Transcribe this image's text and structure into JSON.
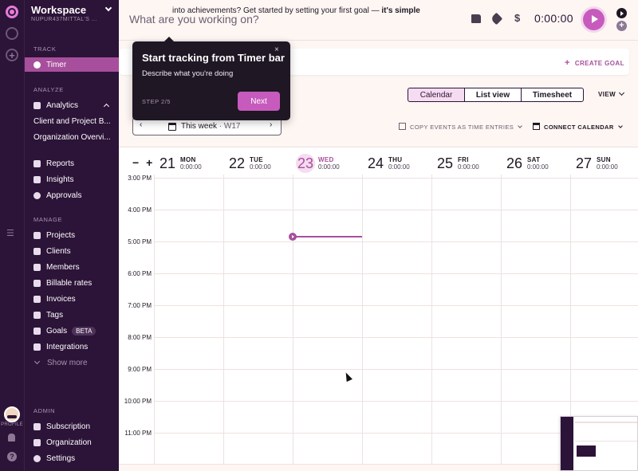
{
  "rail": {
    "profile_label": "PROFILE",
    "help": "?"
  },
  "sidebar": {
    "workspace_title": "Workspace",
    "workspace_sub": "NUPUR437MITTAL'S ...",
    "sections": {
      "track": "TRACK",
      "analyze": "ANALYZE",
      "manage": "MANAGE",
      "admin": "ADMIN"
    },
    "track_items": [
      {
        "label": "Timer",
        "icon": "clock-icon"
      }
    ],
    "analyze_items": [
      {
        "label": "Analytics",
        "icon": "bar-chart-icon"
      },
      {
        "label": "Client and Project B..."
      },
      {
        "label": "Organization Overvi..."
      },
      {
        "label": "Reports",
        "icon": "report-icon"
      },
      {
        "label": "Insights",
        "icon": "insights-icon"
      },
      {
        "label": "Approvals",
        "icon": "check-circle-icon"
      }
    ],
    "manage_items": [
      {
        "label": "Projects",
        "icon": "folder-icon"
      },
      {
        "label": "Clients",
        "icon": "client-icon"
      },
      {
        "label": "Members",
        "icon": "members-icon"
      },
      {
        "label": "Billable rates",
        "icon": "dollar-icon"
      },
      {
        "label": "Invoices",
        "icon": "invoice-icon"
      },
      {
        "label": "Tags",
        "icon": "tag-icon"
      },
      {
        "label": "Goals",
        "icon": "rocket-icon",
        "badge": "BETA"
      },
      {
        "label": "Integrations",
        "icon": "puzzle-icon"
      },
      {
        "label": "Show more"
      }
    ],
    "admin_items": [
      {
        "label": "Subscription",
        "icon": "card-icon"
      },
      {
        "label": "Organization",
        "icon": "building-icon"
      },
      {
        "label": "Settings",
        "icon": "gear-icon"
      }
    ]
  },
  "header": {
    "placeholder": "What are you working on?",
    "dollar": "$",
    "timer": "0:00:00"
  },
  "banner": {
    "text": "into achievements? Get started by setting your first goal — ",
    "bold": "it's simple",
    "cta": "CREATE GOAL"
  },
  "view_tabs": [
    "Calendar",
    "List view",
    "Timesheet"
  ],
  "view_dropdown": "VIEW",
  "week_picker": {
    "label": "This week",
    "week": "W17",
    "prev": "‹",
    "next": "›"
  },
  "toolbar": {
    "copy_events": "COPY EVENTS AS TIME ENTRIES",
    "connect_calendar": "CONNECT CALENDAR"
  },
  "zoom": {
    "minus": "−",
    "plus": "+"
  },
  "days": [
    {
      "num": "21",
      "name": "MON",
      "total": "0:00:00",
      "today": false
    },
    {
      "num": "22",
      "name": "TUE",
      "total": "0:00:00",
      "today": false
    },
    {
      "num": "23",
      "name": "WED",
      "total": "0:00:00",
      "today": true
    },
    {
      "num": "24",
      "name": "THU",
      "total": "0:00:00",
      "today": false
    },
    {
      "num": "25",
      "name": "FRI",
      "total": "0:00:00",
      "today": false
    },
    {
      "num": "26",
      "name": "SAT",
      "total": "0:00:00",
      "today": false
    },
    {
      "num": "27",
      "name": "SUN",
      "total": "0:00:00",
      "today": false
    }
  ],
  "hours": [
    "3:00 PM",
    "4:00 PM",
    "5:00 PM",
    "6:00 PM",
    "7:00 PM",
    "8:00 PM",
    "9:00 PM",
    "10:00 PM",
    "11:00 PM"
  ],
  "tooltip": {
    "title": "Start tracking from Timer bar",
    "desc": "Describe what you're doing",
    "step": "STEP 2/5",
    "next": "Next",
    "close": "×"
  },
  "colors": {
    "accent": "#c75bbd",
    "sidebar": "#2c1338",
    "active": "#a74f9c"
  }
}
